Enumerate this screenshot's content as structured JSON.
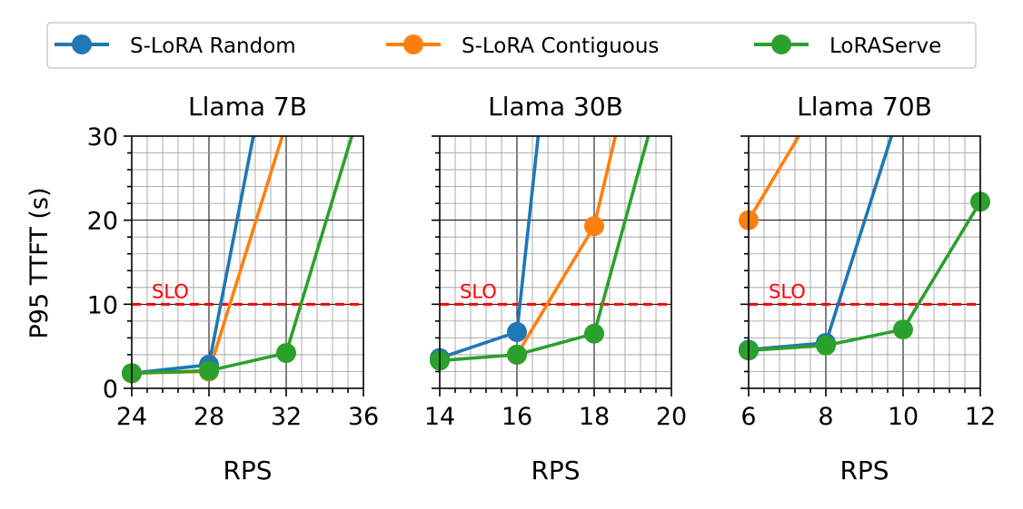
{
  "legend": {
    "placement": "top-center",
    "entries": [
      {
        "label": "S-LoRA Random",
        "color": "#1f77b4"
      },
      {
        "label": "S-LoRA Contiguous",
        "color": "#ff7f0e"
      },
      {
        "label": "LoRAServe",
        "color": "#2ca02c"
      }
    ]
  },
  "shared": {
    "ylabel": "P95 TTFT (s)",
    "ylim": [
      0,
      30
    ],
    "yticks": [
      "0",
      "10",
      "20",
      "30"
    ],
    "slo_value": 10,
    "slo_label": "SLO",
    "slo_color": "#ff0000",
    "grid": "major and minor"
  },
  "chart_data": [
    {
      "type": "line",
      "title": "Llama 7B",
      "xlabel": "RPS",
      "xlim": [
        24,
        36
      ],
      "xticks": [
        "24",
        "28",
        "32",
        "36"
      ],
      "series": [
        {
          "name": "S-LoRA Random",
          "x": [
            24,
            28,
            30.3
          ],
          "y": [
            1.8,
            2.8,
            30
          ]
        },
        {
          "name": "S-LoRA Contiguous",
          "x": [
            24,
            28,
            31.8
          ],
          "y": [
            1.8,
            2.0,
            30
          ]
        },
        {
          "name": "LoRAServe",
          "x": [
            24,
            28,
            32,
            35.4
          ],
          "y": [
            1.8,
            2.1,
            4.2,
            30
          ]
        }
      ]
    },
    {
      "type": "line",
      "title": "Llama 30B",
      "xlabel": "RPS",
      "xlim": [
        14,
        20
      ],
      "xticks": [
        "14",
        "16",
        "18",
        "20"
      ],
      "series": [
        {
          "name": "S-LoRA Random",
          "x": [
            14,
            16,
            16.55
          ],
          "y": [
            3.6,
            6.7,
            30
          ]
        },
        {
          "name": "S-LoRA Contiguous",
          "x": [
            16,
            18,
            18.55
          ],
          "y": [
            4.0,
            19.3,
            30
          ]
        },
        {
          "name": "LoRAServe",
          "x": [
            14,
            16,
            18,
            19.4
          ],
          "y": [
            3.3,
            4.0,
            6.5,
            30
          ]
        }
      ]
    },
    {
      "type": "line",
      "title": "Llama 70B",
      "xlabel": "RPS",
      "xlim": [
        6,
        12
      ],
      "xticks": [
        "6",
        "8",
        "10",
        "12"
      ],
      "series": [
        {
          "name": "S-LoRA Random",
          "x": [
            6,
            8,
            9.7
          ],
          "y": [
            4.6,
            5.4,
            30
          ]
        },
        {
          "name": "S-LoRA Contiguous",
          "x": [
            6,
            7.3
          ],
          "y": [
            20.0,
            30
          ]
        },
        {
          "name": "LoRAServe",
          "x": [
            6,
            8,
            10,
            12
          ],
          "y": [
            4.5,
            5.1,
            7.0,
            22.2
          ]
        }
      ]
    }
  ]
}
